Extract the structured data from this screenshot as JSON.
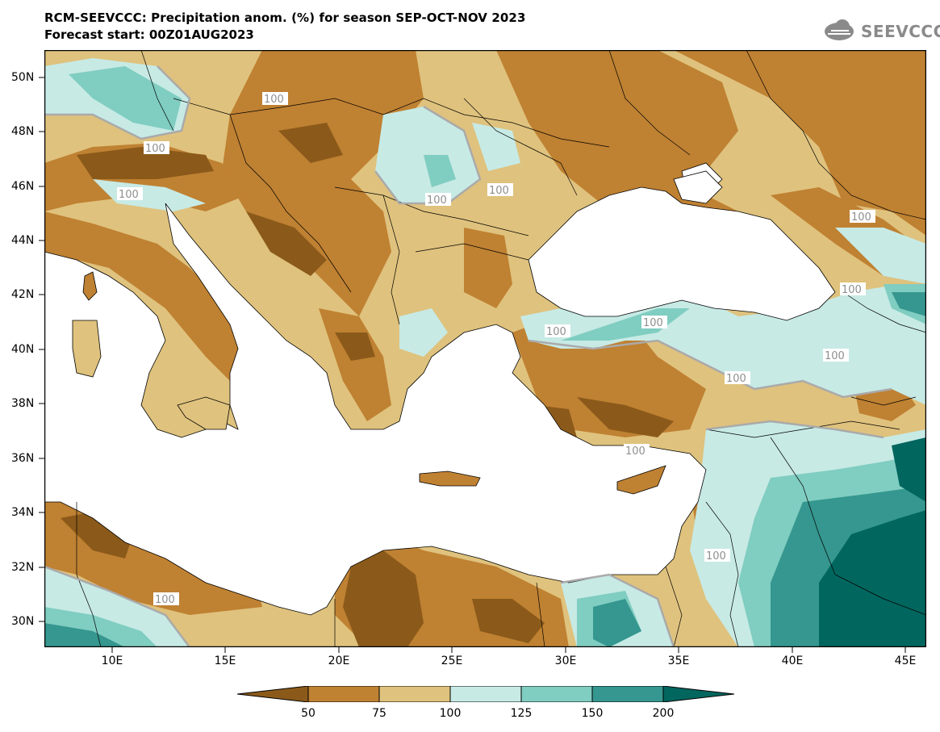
{
  "header": {
    "title": "RCM-SEEVCCC: Precipitation anom. (%) for season SEP-OCT-NOV 2023",
    "subtitle": "Forecast start: 00Z01AUG2023",
    "logo_text": "SEEVCCC"
  },
  "map": {
    "lat_ticks": [
      "50N",
      "48N",
      "46N",
      "44N",
      "42N",
      "40N",
      "38N",
      "36N",
      "34N",
      "32N",
      "30N"
    ],
    "lon_ticks": [
      "10E",
      "15E",
      "20E",
      "25E",
      "30E",
      "35E",
      "40E",
      "45E"
    ],
    "contour_label": "100",
    "colors": {
      "very_dry": "#8b5a1a",
      "dry": "#bf8132",
      "slightly_dry": "#dfc27d",
      "slightly_wet": "#c7eae5",
      "wet": "#80cdc1",
      "very_wet": "#35978f",
      "extreme_wet": "#01665e",
      "sea": "#ffffff"
    }
  },
  "colorbar": {
    "labels": [
      "50",
      "75",
      "100",
      "125",
      "150",
      "200"
    ],
    "colors": [
      "#8b5a1a",
      "#bf8132",
      "#dfc27d",
      "#c7eae5",
      "#80cdc1",
      "#35978f",
      "#01665e"
    ]
  }
}
